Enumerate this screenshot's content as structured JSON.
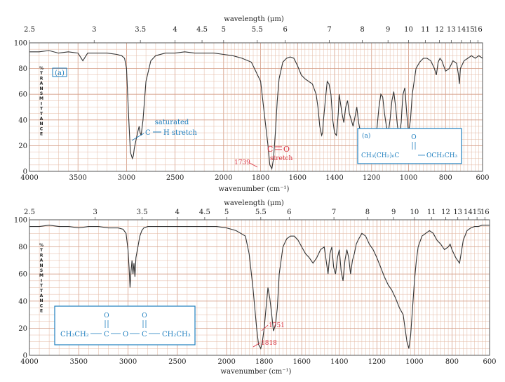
{
  "colors": {
    "grid": "#e3b8a3",
    "grid_major": "#d49b84",
    "trace": "#333333",
    "annotation_blue": "#1f7fbf",
    "annotation_red": "#d9303e",
    "box_border": "#1f7fbf"
  },
  "chart_data": [
    {
      "type": "line",
      "panel_label": "(a)",
      "top_axis_label": "wavelength (μm)",
      "top_ticks": [
        "2.5",
        "3",
        "3.5",
        "4",
        "4.5",
        "5",
        "5.5",
        "6",
        "7",
        "8",
        "9",
        "10",
        "11",
        "12",
        "13",
        "14",
        "15",
        "16"
      ],
      "top_tick_values": [
        2.5,
        3,
        3.5,
        4,
        4.5,
        5,
        5.5,
        6,
        7,
        8,
        9,
        10,
        11,
        12,
        13,
        14,
        15,
        16
      ],
      "xlabel": "wavenumber (cm⁻¹)",
      "x_ticks": [
        4000,
        3500,
        3000,
        2500,
        2000,
        1800,
        1600,
        1400,
        1200,
        1000,
        800,
        600
      ],
      "ylabel_letters": [
        "%",
        "T",
        "R",
        "A",
        "N",
        "S",
        "M",
        "I",
        "T",
        "T",
        "A",
        "N",
        "C",
        "E"
      ],
      "y_ticks": [
        0,
        20,
        40,
        60,
        80,
        100
      ],
      "ylim": [
        0,
        100
      ],
      "annotations": {
        "saturated": "saturated",
        "ch_stretch_c": "C",
        "ch_stretch_rest": "H stretch",
        "co_c": "C",
        "co_o": "O",
        "co_stretch": "stretch",
        "peak_1739": "1739",
        "struct_label": "(a)",
        "struct_o": "O",
        "struct_left": "CH₃(CH₂)₆C",
        "struct_right": "OCH₂CH₃"
      },
      "x": [
        4000,
        3900,
        3800,
        3700,
        3600,
        3500,
        3450,
        3400,
        3300,
        3200,
        3100,
        3050,
        3020,
        3000,
        2980,
        2960,
        2940,
        2930,
        2920,
        2900,
        2880,
        2870,
        2860,
        2850,
        2830,
        2800,
        2750,
        2700,
        2600,
        2500,
        2400,
        2300,
        2200,
        2100,
        2000,
        1950,
        1900,
        1850,
        1800,
        1780,
        1760,
        1750,
        1739,
        1730,
        1720,
        1710,
        1700,
        1680,
        1660,
        1640,
        1620,
        1600,
        1580,
        1560,
        1540,
        1520,
        1500,
        1490,
        1480,
        1470,
        1465,
        1460,
        1450,
        1440,
        1430,
        1420,
        1410,
        1400,
        1390,
        1380,
        1375,
        1370,
        1360,
        1350,
        1340,
        1330,
        1320,
        1310,
        1300,
        1290,
        1280,
        1270,
        1260,
        1250,
        1240,
        1230,
        1220,
        1210,
        1200,
        1190,
        1180,
        1170,
        1160,
        1150,
        1140,
        1130,
        1120,
        1110,
        1100,
        1090,
        1080,
        1070,
        1060,
        1050,
        1040,
        1035,
        1030,
        1020,
        1010,
        1000,
        990,
        980,
        960,
        940,
        920,
        900,
        880,
        860,
        850,
        840,
        830,
        820,
        800,
        780,
        760,
        740,
        730,
        725,
        720,
        700,
        680,
        660,
        640,
        620,
        600
      ],
      "y": [
        93,
        93,
        94,
        92,
        93,
        92,
        86,
        92,
        92,
        92,
        91,
        90,
        88,
        80,
        45,
        15,
        10,
        12,
        18,
        25,
        32,
        35,
        30,
        28,
        40,
        70,
        86,
        90,
        92,
        92,
        93,
        92,
        92,
        92,
        91,
        90,
        88,
        85,
        70,
        45,
        20,
        5,
        2,
        10,
        30,
        55,
        72,
        85,
        88,
        89,
        88,
        82,
        75,
        72,
        70,
        68,
        60,
        50,
        35,
        28,
        30,
        40,
        55,
        70,
        68,
        60,
        40,
        30,
        28,
        45,
        60,
        55,
        45,
        38,
        50,
        55,
        45,
        40,
        35,
        42,
        50,
        38,
        30,
        28,
        22,
        20,
        18,
        15,
        12,
        13,
        25,
        35,
        50,
        60,
        58,
        45,
        35,
        30,
        40,
        55,
        62,
        50,
        35,
        28,
        38,
        50,
        60,
        65,
        45,
        30,
        40,
        60,
        80,
        85,
        88,
        88,
        86,
        80,
        75,
        85,
        88,
        86,
        78,
        80,
        86,
        84,
        75,
        68,
        80,
        86,
        88,
        90,
        88,
        90,
        88
      ]
    },
    {
      "type": "line",
      "top_axis_label": "wavelength (μm)",
      "top_ticks": [
        "2.5",
        "3",
        "3.5",
        "4",
        "4.5",
        "5",
        "5.5",
        "6",
        "7",
        "8",
        "9",
        "10",
        "11",
        "12",
        "13",
        "14",
        "15",
        "16"
      ],
      "top_tick_values": [
        2.5,
        3,
        3.5,
        4,
        4.5,
        5,
        5.5,
        6,
        7,
        8,
        9,
        10,
        11,
        12,
        13,
        14,
        15,
        16
      ],
      "xlabel": "wavenumber (cm⁻¹)",
      "x_ticks": [
        4000,
        3500,
        3000,
        2500,
        2000,
        1800,
        1600,
        1400,
        1200,
        1000,
        800,
        600
      ],
      "ylabel_letters": [
        "%",
        "T",
        "R",
        "A",
        "N",
        "S",
        "M",
        "I",
        "T",
        "T",
        "A",
        "N",
        "C",
        "E"
      ],
      "y_ticks": [
        0,
        20,
        40,
        60,
        80,
        100
      ],
      "ylim": [
        0,
        100
      ],
      "annotations": {
        "struct_o1": "O",
        "struct_o2": "O",
        "struct_left": "CH₃CH₂",
        "struct_c1": "C",
        "struct_o_mid": "O",
        "struct_c2": "C",
        "struct_right": "CH₂CH₃",
        "peak_1751": "1751",
        "peak_1818": "1818"
      },
      "x": [
        4000,
        3900,
        3800,
        3700,
        3600,
        3500,
        3400,
        3300,
        3200,
        3100,
        3050,
        3020,
        3000,
        2990,
        2980,
        2970,
        2960,
        2950,
        2940,
        2930,
        2920,
        2900,
        2880,
        2860,
        2840,
        2800,
        2700,
        2600,
        2500,
        2400,
        2300,
        2200,
        2100,
        2000,
        1950,
        1900,
        1880,
        1860,
        1840,
        1830,
        1818,
        1810,
        1800,
        1790,
        1780,
        1770,
        1760,
        1751,
        1740,
        1730,
        1720,
        1700,
        1680,
        1660,
        1640,
        1620,
        1600,
        1580,
        1560,
        1540,
        1520,
        1500,
        1480,
        1470,
        1460,
        1450,
        1440,
        1430,
        1420,
        1410,
        1400,
        1390,
        1380,
        1370,
        1360,
        1350,
        1340,
        1330,
        1320,
        1310,
        1300,
        1280,
        1260,
        1240,
        1220,
        1200,
        1180,
        1160,
        1140,
        1120,
        1100,
        1080,
        1060,
        1050,
        1040,
        1035,
        1030,
        1020,
        1010,
        1000,
        990,
        980,
        960,
        940,
        920,
        900,
        880,
        860,
        840,
        820,
        810,
        800,
        790,
        780,
        770,
        760,
        740,
        720,
        700,
        680,
        660,
        640,
        620,
        600
      ],
      "y": [
        95,
        95,
        96,
        95,
        95,
        94,
        95,
        95,
        94,
        94,
        93,
        90,
        78,
        65,
        50,
        62,
        70,
        60,
        68,
        58,
        72,
        80,
        88,
        92,
        94,
        95,
        95,
        95,
        95,
        95,
        95,
        95,
        95,
        94,
        92,
        88,
        75,
        50,
        20,
        8,
        5,
        10,
        20,
        35,
        50,
        42,
        30,
        18,
        22,
        35,
        60,
        80,
        86,
        88,
        88,
        85,
        80,
        75,
        72,
        68,
        72,
        78,
        80,
        70,
        60,
        75,
        80,
        65,
        60,
        72,
        78,
        62,
        55,
        70,
        78,
        72,
        60,
        70,
        75,
        82,
        85,
        90,
        88,
        82,
        78,
        72,
        65,
        58,
        52,
        48,
        42,
        35,
        30,
        20,
        10,
        8,
        5,
        15,
        35,
        55,
        70,
        80,
        88,
        90,
        92,
        90,
        85,
        82,
        78,
        80,
        82,
        78,
        75,
        72,
        70,
        68,
        85,
        92,
        94,
        95,
        95,
        96,
        96,
        96
      ]
    }
  ]
}
